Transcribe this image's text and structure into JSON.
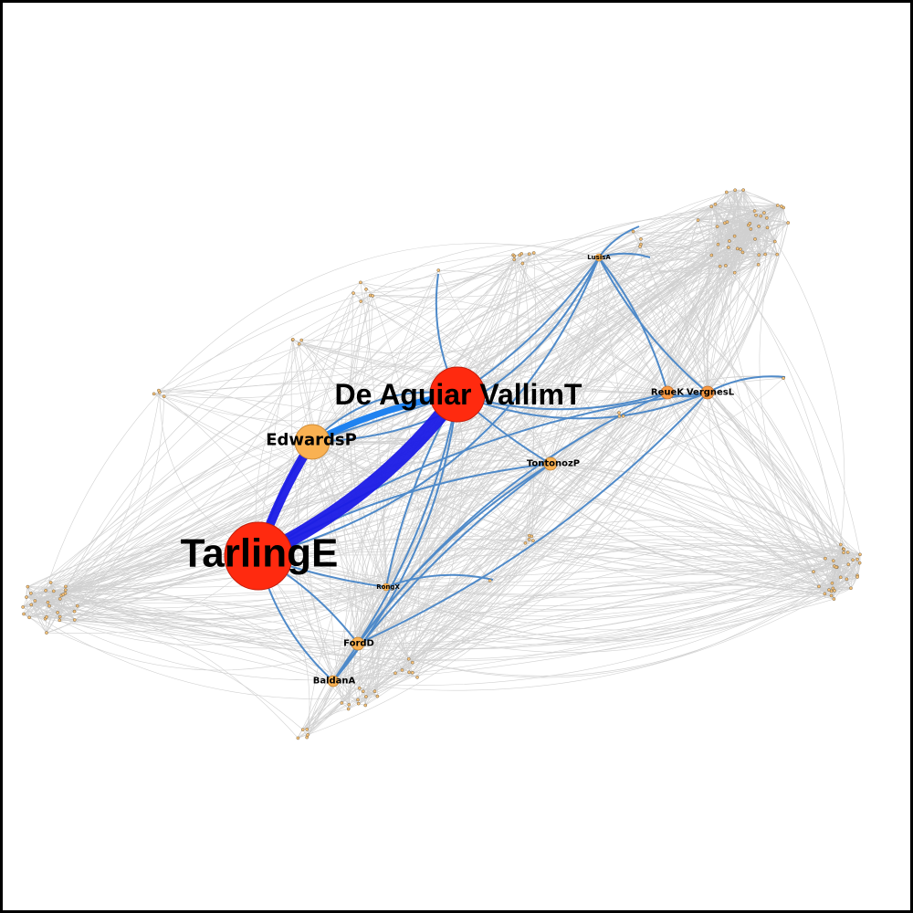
{
  "graph": {
    "major_nodes": [
      {
        "id": "tarling",
        "label": "TarlingE",
        "size": "xl",
        "color": "#ff2a0f"
      },
      {
        "id": "deaguiar",
        "label": "De Aguiar VallimT",
        "size": "l",
        "color": "#ff2a0f"
      },
      {
        "id": "edwards",
        "label": "EdwardsP",
        "size": "m",
        "color": "#f9b152"
      },
      {
        "id": "tontonoz",
        "label": "TontonozP",
        "size": "s",
        "color": "#f9b152"
      },
      {
        "id": "reue",
        "label": "ReueK",
        "size": "s",
        "color": "#f99a43"
      },
      {
        "id": "vergnes",
        "label": "VergnesL",
        "size": "s",
        "color": "#f99a43"
      },
      {
        "id": "ford",
        "label": "FordD",
        "size": "s",
        "color": "#f9b152"
      },
      {
        "id": "baldan",
        "label": "BaldanA",
        "size": "s",
        "color": "#f9b152"
      },
      {
        "id": "rong",
        "label": "RongX",
        "size": "s",
        "color": "#f9b152"
      },
      {
        "id": "lusis",
        "label": "LusisA",
        "size": "s",
        "color": "#f9b152"
      }
    ],
    "colors": {
      "strong_edge": "#1a1ae6",
      "medium_edge": "#1f82f0",
      "blue_edge": "#4f8ac9",
      "weak_edge": "#c8c8c8",
      "small_node": "#f6c27a"
    }
  }
}
